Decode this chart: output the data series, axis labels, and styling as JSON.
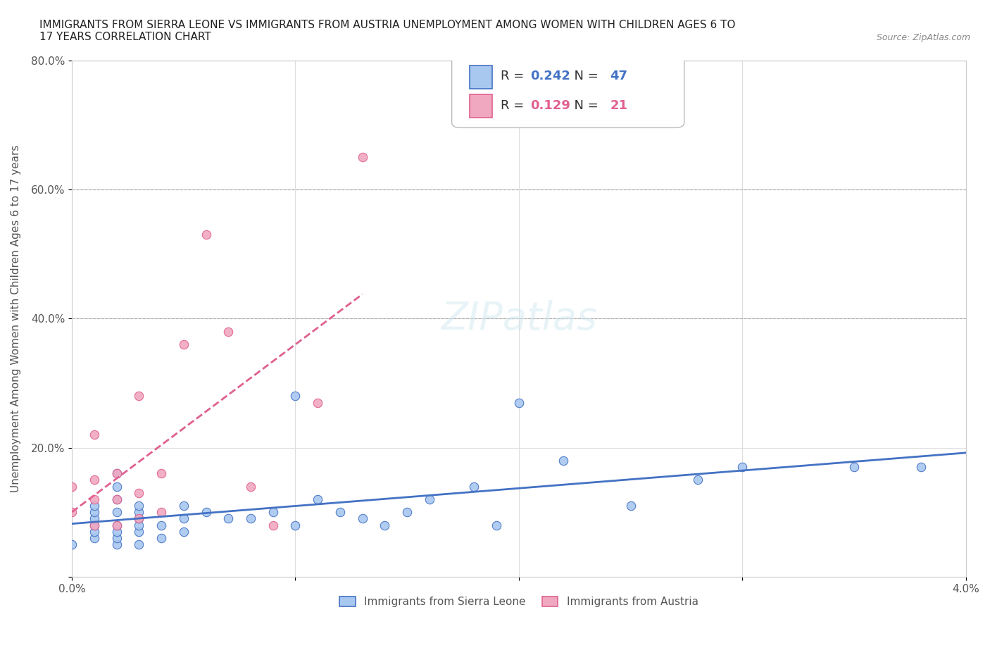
{
  "title": "IMMIGRANTS FROM SIERRA LEONE VS IMMIGRANTS FROM AUSTRIA UNEMPLOYMENT AMONG WOMEN WITH CHILDREN AGES 6 TO\n17 YEARS CORRELATION CHART",
  "source_text": "Source: ZipAtlas.com",
  "xlabel": "",
  "ylabel": "Unemployment Among Women with Children Ages 6 to 17 years",
  "xlim": [
    0.0,
    0.04
  ],
  "ylim": [
    0.0,
    0.8
  ],
  "x_ticks": [
    0.0,
    0.01,
    0.02,
    0.03,
    0.04
  ],
  "x_tick_labels": [
    "0.0%",
    "",
    "",
    "",
    "4.0%"
  ],
  "y_ticks": [
    0.0,
    0.2,
    0.4,
    0.6,
    0.8
  ],
  "y_tick_labels": [
    "",
    "20.0%",
    "40.0%",
    "60.0%",
    "80.0%"
  ],
  "sierra_leone_color": "#a8c8f0",
  "austria_color": "#f0a8c0",
  "sierra_leone_line_color": "#4472c4",
  "austria_line_color": "#e06090",
  "R_sierra": 0.242,
  "N_sierra": 47,
  "R_austria": 0.129,
  "N_austria": 21,
  "watermark": "ZIPatlas",
  "sierra_leone_x": [
    0.0,
    0.001,
    0.001,
    0.001,
    0.001,
    0.001,
    0.001,
    0.002,
    0.002,
    0.002,
    0.002,
    0.002,
    0.002,
    0.002,
    0.002,
    0.003,
    0.003,
    0.003,
    0.003,
    0.003,
    0.003,
    0.004,
    0.004,
    0.005,
    0.005,
    0.005,
    0.006,
    0.007,
    0.008,
    0.009,
    0.01,
    0.01,
    0.011,
    0.012,
    0.013,
    0.014,
    0.015,
    0.016,
    0.018,
    0.019,
    0.02,
    0.022,
    0.025,
    0.028,
    0.03,
    0.035,
    0.038
  ],
  "sierra_leone_y": [
    0.05,
    0.06,
    0.07,
    0.08,
    0.09,
    0.1,
    0.11,
    0.05,
    0.06,
    0.07,
    0.08,
    0.1,
    0.12,
    0.14,
    0.16,
    0.05,
    0.07,
    0.08,
    0.09,
    0.1,
    0.11,
    0.06,
    0.08,
    0.07,
    0.09,
    0.11,
    0.1,
    0.09,
    0.09,
    0.1,
    0.28,
    0.08,
    0.12,
    0.1,
    0.09,
    0.08,
    0.1,
    0.12,
    0.14,
    0.08,
    0.27,
    0.18,
    0.11,
    0.15,
    0.17,
    0.17,
    0.17
  ],
  "austria_x": [
    0.0,
    0.0,
    0.001,
    0.001,
    0.001,
    0.001,
    0.002,
    0.002,
    0.002,
    0.003,
    0.003,
    0.003,
    0.004,
    0.004,
    0.005,
    0.006,
    0.007,
    0.008,
    0.009,
    0.011,
    0.013
  ],
  "austria_y": [
    0.1,
    0.14,
    0.08,
    0.12,
    0.15,
    0.22,
    0.08,
    0.12,
    0.16,
    0.09,
    0.13,
    0.28,
    0.1,
    0.16,
    0.36,
    0.53,
    0.38,
    0.14,
    0.08,
    0.27,
    0.65
  ],
  "background_color": "#ffffff",
  "grid_color": "#dddddd"
}
